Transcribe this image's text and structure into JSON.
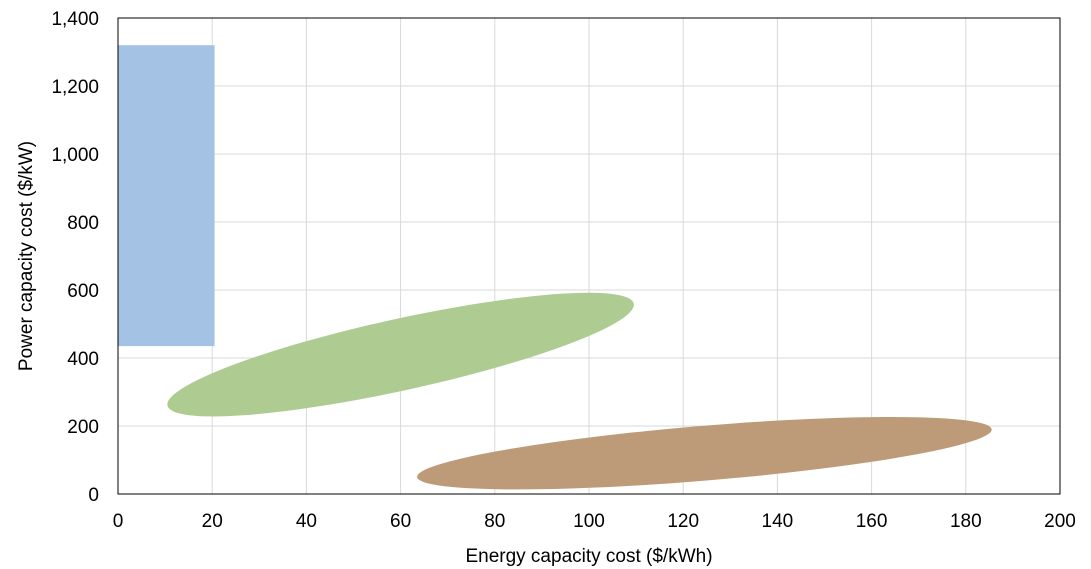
{
  "chart_data": {
    "type": "scatter",
    "title": "",
    "xlabel": "Energy capacity cost ($/kWh)",
    "ylabel": "Power capacity cost ($/kW)",
    "xlim": [
      0,
      200
    ],
    "ylim": [
      0,
      1400
    ],
    "x_ticks": [
      "0",
      "20",
      "40",
      "60",
      "80",
      "100",
      "120",
      "140",
      "160",
      "180",
      "200"
    ],
    "y_ticks": [
      "0",
      "200",
      "400",
      "600",
      "800",
      "1,000",
      "1,200",
      "1,400"
    ],
    "x_tick_values": [
      0,
      20,
      40,
      60,
      80,
      100,
      120,
      140,
      160,
      180,
      200
    ],
    "y_tick_values": [
      0,
      200,
      400,
      600,
      800,
      1000,
      1200,
      1400
    ],
    "grid": true,
    "regions": [
      {
        "shape": "rectangle",
        "color": "#a4c2e4",
        "x_range": [
          0,
          20.5
        ],
        "y_range": [
          435,
          1320
        ]
      },
      {
        "shape": "ellipse",
        "color": "#aecc92",
        "center": [
          60,
          410
        ],
        "end_left": [
          11,
          255
        ],
        "end_right": [
          110,
          555
        ]
      },
      {
        "shape": "ellipse",
        "color": "#bd9b78",
        "center": [
          124.5,
          120
        ],
        "end_left": [
          64,
          45
        ],
        "end_right": [
          186,
          185
        ]
      }
    ]
  }
}
